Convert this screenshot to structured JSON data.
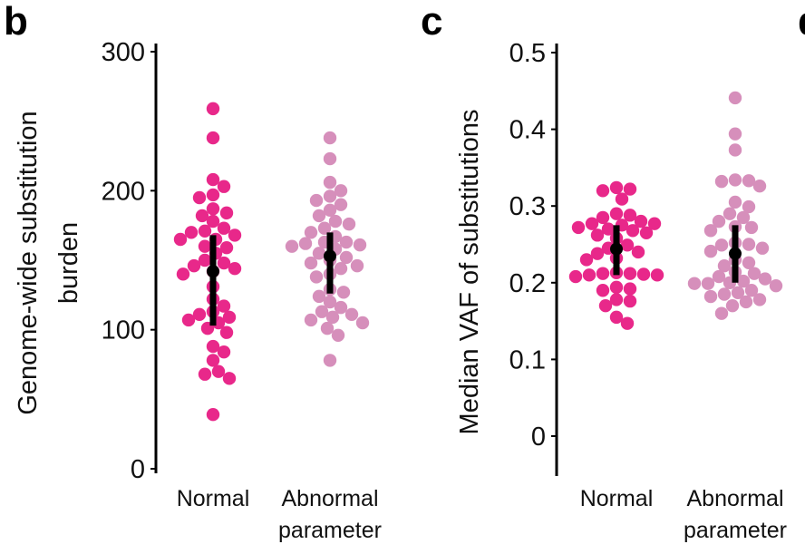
{
  "panels": {
    "b": "b",
    "c": "c",
    "d": "d"
  },
  "chart_data": [
    {
      "type": "scatter",
      "subtype": "beeswarm with mean and error bar",
      "panel": "b",
      "ylabel_lines": [
        "Genome-wide substitution",
        "burden"
      ],
      "ylim": [
        0,
        300
      ],
      "yticks": [
        "0",
        "100",
        "200",
        "300"
      ],
      "categories": [
        [
          "Normal"
        ],
        [
          "Abnormal",
          "parameter"
        ]
      ],
      "grid": false,
      "series": [
        {
          "category": "Normal",
          "color": "#e8288a",
          "values": [
            259,
            238,
            208,
            203,
            197,
            195,
            187,
            184,
            182,
            178,
            173,
            171,
            170,
            168,
            165,
            165,
            160,
            159,
            155,
            150,
            148,
            146,
            144,
            142,
            140,
            131,
            122,
            117,
            113,
            111,
            109,
            107,
            105,
            101,
            98,
            88,
            84,
            78,
            70,
            68,
            65,
            39
          ],
          "mean": 142,
          "error": [
            103,
            168
          ]
        },
        {
          "category": "Abnormal parameter",
          "color": "#d68fbb",
          "values": [
            238,
            223,
            206,
            200,
            196,
            193,
            190,
            186,
            182,
            178,
            176,
            173,
            170,
            167,
            163,
            163,
            162,
            161,
            160,
            158,
            155,
            152,
            150,
            148,
            146,
            144,
            140,
            138,
            129,
            127,
            124,
            120,
            116,
            113,
            111,
            109,
            107,
            105,
            101,
            96,
            78
          ],
          "mean": 153,
          "error": [
            126,
            170
          ]
        }
      ]
    },
    {
      "type": "scatter",
      "subtype": "beeswarm with mean and error bar",
      "panel": "c",
      "ylabel": "Median VAF of substitutions",
      "ylim": [
        0,
        0.5
      ],
      "yticks": [
        "0",
        "0.1",
        "0.2",
        "0.3",
        "0.4",
        "0.5"
      ],
      "categories": [
        [
          "Normal"
        ],
        [
          "Abnormal",
          "parameter"
        ]
      ],
      "grid": false,
      "series": [
        {
          "category": "Normal",
          "color": "#e8288a",
          "values": [
            0.324,
            0.322,
            0.32,
            0.309,
            0.29,
            0.288,
            0.285,
            0.28,
            0.277,
            0.277,
            0.275,
            0.272,
            0.27,
            0.268,
            0.265,
            0.262,
            0.258,
            0.249,
            0.245,
            0.24,
            0.238,
            0.232,
            0.23,
            0.213,
            0.212,
            0.212,
            0.211,
            0.21,
            0.21,
            0.208,
            0.194,
            0.192,
            0.19,
            0.178,
            0.176,
            0.17,
            0.155,
            0.147
          ],
          "mean": 0.244,
          "error": [
            0.21,
            0.275
          ]
        },
        {
          "category": "Abnormal parameter",
          "color": "#d68fbb",
          "values": [
            0.441,
            0.394,
            0.373,
            0.334,
            0.333,
            0.332,
            0.326,
            0.305,
            0.299,
            0.29,
            0.285,
            0.28,
            0.273,
            0.272,
            0.268,
            0.252,
            0.25,
            0.249,
            0.245,
            0.241,
            0.23,
            0.226,
            0.222,
            0.214,
            0.212,
            0.208,
            0.205,
            0.202,
            0.2,
            0.199,
            0.199,
            0.196,
            0.19,
            0.187,
            0.185,
            0.182,
            0.178,
            0.175,
            0.17,
            0.16
          ],
          "mean": 0.238,
          "error": [
            0.2,
            0.275
          ]
        }
      ]
    }
  ]
}
